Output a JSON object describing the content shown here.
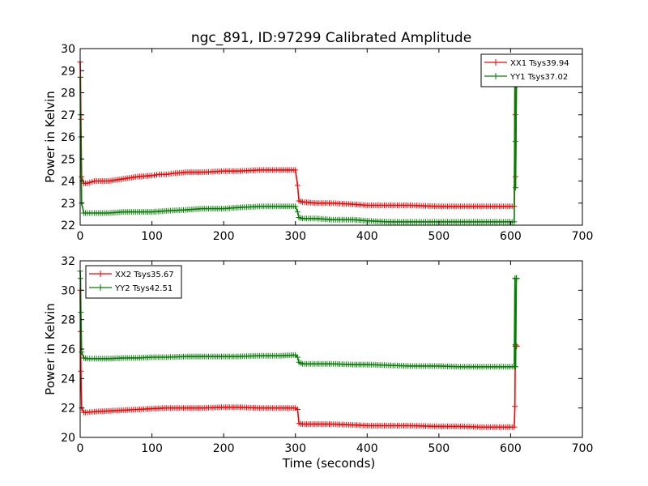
{
  "figure_title": "ngc_891, ID:97299 Calibrated Amplitude",
  "colors": {
    "xx": "#ff0000",
    "yy": "#008000"
  },
  "chart_data": [
    {
      "type": "line",
      "panel": "top",
      "title": "ngc_891, ID:97299 Calibrated Amplitude",
      "xlabel": "",
      "ylabel": "Power in Kelvin",
      "xlim": [
        0,
        700
      ],
      "ylim": [
        22,
        30
      ],
      "xticks": [
        0,
        100,
        200,
        300,
        400,
        500,
        600,
        700
      ],
      "yticks": [
        22,
        23,
        24,
        25,
        26,
        27,
        28,
        29,
        30
      ],
      "grid": false,
      "legend_position": "top-right",
      "series": [
        {
          "name": "XX1 Tsys39.94",
          "color": "#ff0000",
          "x": [
            0,
            0.5,
            1,
            2,
            5,
            10,
            20,
            40,
            60,
            80,
            100,
            110,
            120,
            130,
            150,
            170,
            200,
            220,
            250,
            280,
            300,
            303,
            305,
            310,
            330,
            350,
            380,
            400,
            430,
            460,
            500,
            530,
            560,
            590,
            605,
            606,
            606.5,
            607,
            608
          ],
          "y": [
            29.4,
            28.7,
            26.8,
            24.2,
            23.9,
            23.9,
            24.0,
            24.0,
            24.1,
            24.2,
            24.25,
            24.3,
            24.3,
            24.35,
            24.4,
            24.4,
            24.45,
            24.45,
            24.5,
            24.5,
            24.5,
            23.8,
            23.1,
            23.05,
            23.0,
            23.0,
            22.95,
            22.9,
            22.9,
            22.9,
            22.85,
            22.85,
            22.85,
            22.85,
            22.85,
            28.3,
            27.0,
            24.2,
            28.3
          ]
        },
        {
          "name": "YY1 Tsys37.02",
          "color": "#008000",
          "x": [
            0,
            0.5,
            1,
            2,
            5,
            10,
            20,
            40,
            60,
            80,
            100,
            120,
            150,
            170,
            200,
            220,
            250,
            280,
            300,
            303,
            305,
            310,
            330,
            350,
            380,
            400,
            430,
            460,
            500,
            530,
            560,
            590,
            605,
            606,
            606.5,
            607,
            608
          ],
          "y": [
            28.7,
            27.0,
            26.0,
            23.0,
            22.55,
            22.55,
            22.55,
            22.55,
            22.6,
            22.6,
            22.6,
            22.65,
            22.7,
            22.75,
            22.75,
            22.8,
            22.85,
            22.85,
            22.85,
            22.6,
            22.35,
            22.3,
            22.3,
            22.25,
            22.25,
            22.2,
            22.15,
            22.15,
            22.15,
            22.15,
            22.15,
            22.15,
            22.15,
            28.3,
            25.8,
            23.7,
            28.3
          ]
        }
      ]
    },
    {
      "type": "line",
      "panel": "bottom",
      "title": "",
      "xlabel": "Time (seconds)",
      "ylabel": "Power in Kelvin",
      "xlim": [
        0,
        700
      ],
      "ylim": [
        20,
        32
      ],
      "xticks": [
        0,
        100,
        200,
        300,
        400,
        500,
        600,
        700
      ],
      "yticks": [
        20,
        22,
        24,
        26,
        28,
        30,
        32
      ],
      "grid": false,
      "legend_position": "top-left",
      "series": [
        {
          "name": "XX2 Tsys35.67",
          "color": "#ff0000",
          "x": [
            0,
            0.5,
            1,
            2,
            5,
            10,
            20,
            40,
            60,
            80,
            100,
            120,
            150,
            170,
            200,
            220,
            250,
            280,
            300,
            303,
            305,
            310,
            330,
            350,
            380,
            400,
            430,
            460,
            500,
            530,
            560,
            590,
            605,
            606,
            606.5,
            607,
            608
          ],
          "y": [
            30.0,
            27.2,
            24.5,
            22.0,
            21.7,
            21.7,
            21.75,
            21.8,
            21.85,
            21.9,
            21.95,
            22.0,
            22.0,
            22.0,
            22.05,
            22.05,
            22.0,
            22.0,
            22.0,
            21.9,
            20.95,
            20.9,
            20.9,
            20.9,
            20.85,
            20.8,
            20.8,
            20.8,
            20.75,
            20.75,
            20.7,
            20.7,
            20.7,
            22.1,
            26.2,
            26.2,
            26.2
          ]
        },
        {
          "name": "YY2 Tsys42.51",
          "color": "#008000",
          "x": [
            0,
            0.5,
            1,
            2,
            5,
            10,
            20,
            40,
            60,
            80,
            100,
            120,
            150,
            170,
            200,
            220,
            250,
            280,
            300,
            303,
            305,
            310,
            330,
            350,
            380,
            400,
            430,
            460,
            500,
            530,
            560,
            590,
            605,
            606,
            606.5,
            607,
            608
          ],
          "y": [
            31.3,
            30.8,
            28.5,
            25.8,
            25.4,
            25.35,
            25.35,
            25.35,
            25.4,
            25.4,
            25.45,
            25.45,
            25.5,
            25.5,
            25.5,
            25.5,
            25.55,
            25.55,
            25.6,
            25.45,
            25.1,
            25.0,
            25.0,
            25.0,
            24.95,
            24.95,
            24.9,
            24.85,
            24.85,
            24.8,
            24.8,
            24.8,
            24.8,
            30.8,
            26.3,
            24.8,
            30.8
          ]
        }
      ]
    }
  ]
}
